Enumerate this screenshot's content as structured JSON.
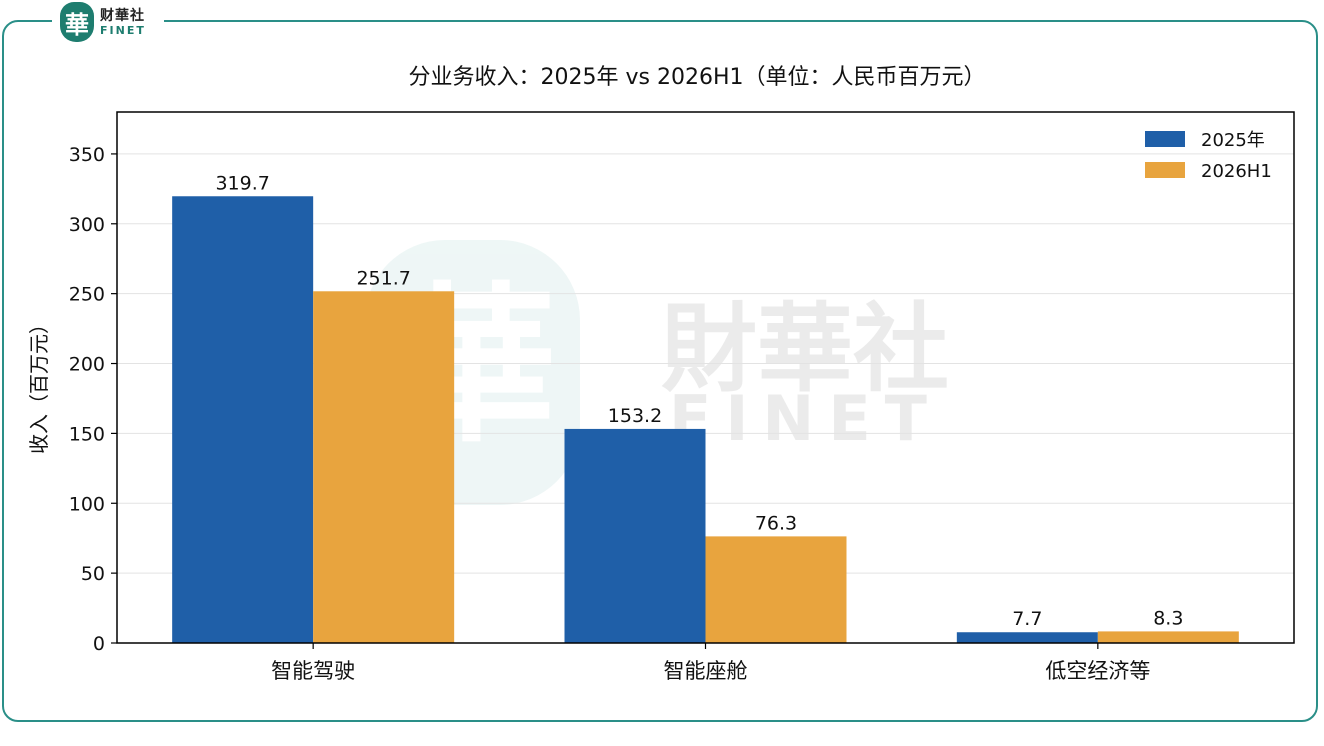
{
  "brand": {
    "logo_char": "華",
    "name_cn": "财華社",
    "name_en": "FINET",
    "watermark_cn": "財華社",
    "watermark_en": "FINET",
    "accent_color": "#1e7d6f"
  },
  "chart_data": {
    "type": "bar",
    "title": "分业务收入：2025年 vs 2026H1（单位：人民币百万元）",
    "xlabel": "",
    "ylabel": "收入（百万元）",
    "ylim": [
      0,
      380
    ],
    "yticks": [
      0,
      50,
      100,
      150,
      200,
      250,
      300,
      350
    ],
    "categories": [
      "智能驾驶",
      "智能座舱",
      "低空经济等"
    ],
    "series": [
      {
        "name": "2025年",
        "values": [
          319.7,
          153.2,
          7.7
        ],
        "color": "#1f5fa8"
      },
      {
        "name": "2026H1",
        "values": [
          251.7,
          76.3,
          8.3
        ],
        "color": "#e8a43e"
      }
    ],
    "data_labels": [
      [
        "319.7",
        "153.2",
        "7.7"
      ],
      [
        "251.7",
        "76.3",
        "8.3"
      ]
    ],
    "grid": "horizontal",
    "legend_position": "top-right"
  }
}
